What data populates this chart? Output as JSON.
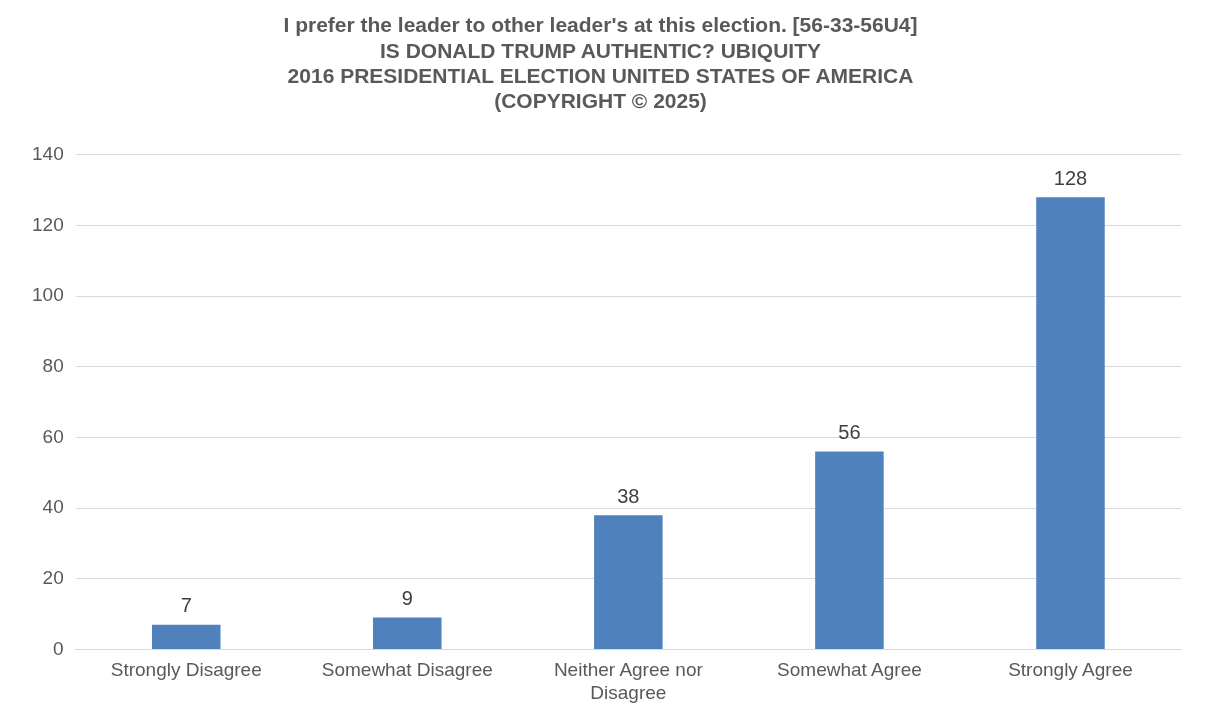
{
  "chart_data": {
    "type": "bar",
    "title": "I prefer the leader to other leader's at this election. [56-33-56U4]\nIS DONALD TRUMP AUTHENTIC? UBIQUITY\n2016 PRESIDENTIAL ELECTION UNITED STATES OF AMERICA\n(COPYRIGHT © 2025)",
    "categories": [
      "Strongly Disagree",
      "Somewhat Disagree",
      "Neither Agree nor Disagree",
      "Somewhat Agree",
      "Strongly Agree"
    ],
    "values": [
      7,
      9,
      38,
      56,
      128
    ],
    "color": "#4f81bd",
    "ylim": [
      0,
      140
    ],
    "yticks": [
      0,
      20,
      40,
      60,
      80,
      100,
      120,
      140
    ],
    "grid": true,
    "data_labels": true
  }
}
